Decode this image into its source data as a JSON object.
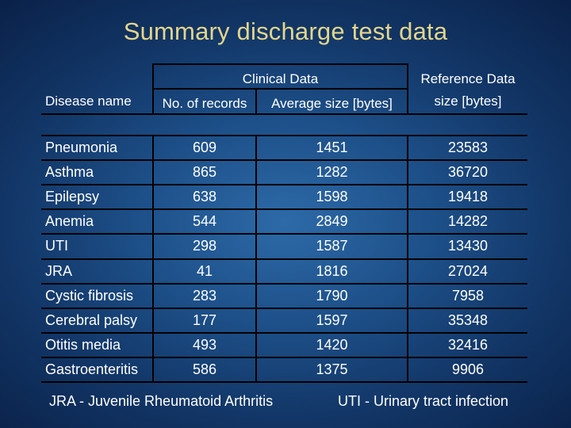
{
  "title": "Summary discharge test data",
  "table": {
    "headers": {
      "disease_name": "Disease name",
      "clinical_data": "Clinical Data",
      "no_of_records": "No. of records",
      "average_size": "Average size [bytes]",
      "reference_data": "Reference Data",
      "reference_size": "size [bytes]"
    },
    "rows": [
      {
        "disease": "Pneumonia",
        "records": "609",
        "avg": "1451",
        "ref": "23583"
      },
      {
        "disease": "Asthma",
        "records": "865",
        "avg": "1282",
        "ref": "36720"
      },
      {
        "disease": "Epilepsy",
        "records": "638",
        "avg": "1598",
        "ref": "19418"
      },
      {
        "disease": "Anemia",
        "records": "544",
        "avg": "2849",
        "ref": "14282"
      },
      {
        "disease": "UTI",
        "records": "298",
        "avg": "1587",
        "ref": "13430"
      },
      {
        "disease": "JRA",
        "records": "41",
        "avg": "1816",
        "ref": "27024"
      },
      {
        "disease": "Cystic fibrosis",
        "records": "283",
        "avg": "1790",
        "ref": "7958"
      },
      {
        "disease": "Cerebral palsy",
        "records": "177",
        "avg": "1597",
        "ref": "35348"
      },
      {
        "disease": "Otitis media",
        "records": "493",
        "avg": "1420",
        "ref": "32416"
      },
      {
        "disease": "Gastroenteritis",
        "records": "586",
        "avg": "1375",
        "ref": "9906"
      }
    ]
  },
  "footnotes": {
    "jra": "JRA - Juvenile Rheumatoid Arthritis",
    "uti": "UTI - Urinary tract infection"
  }
}
